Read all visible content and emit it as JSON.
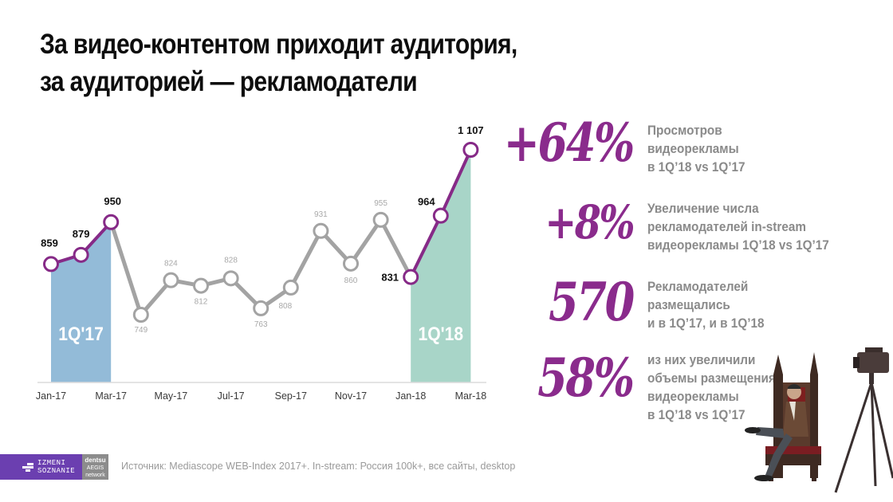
{
  "title": {
    "line1": "За видео-контентом приходит аудитория,",
    "line2": "за аудиторией — рекламодатели"
  },
  "chart_data": {
    "type": "line",
    "title": "",
    "xlabel": "",
    "ylabel": "",
    "x": [
      "Jan-17",
      "Feb-17",
      "Mar-17",
      "Apr-17",
      "May-17",
      "Jun-17",
      "Jul-17",
      "Aug-17",
      "Sep-17",
      "Oct-17",
      "Nov-17",
      "Dec-17",
      "Jan-18",
      "Feb-18",
      "Mar-18"
    ],
    "x_tick_labels": [
      "Jan-17",
      "Mar-17",
      "May-17",
      "Jul-17",
      "Sep-17",
      "Nov-17",
      "Jan-18",
      "Mar-18"
    ],
    "values": [
      859,
      879,
      950,
      749,
      824,
      812,
      828,
      763,
      808,
      931,
      860,
      955,
      831,
      964,
      1107
    ],
    "data_labels": [
      "859",
      "879",
      "950",
      "749",
      "824",
      "812",
      "828",
      "763",
      "808",
      "931",
      "860",
      "955",
      "831",
      "964",
      "1 107"
    ],
    "ylim": [
      600,
      1130
    ],
    "grid": false,
    "legend": "none",
    "highlights": [
      {
        "label": "1Q'17",
        "start": "Jan-17",
        "end": "Mar-17",
        "color": "#93bbd8"
      },
      {
        "label": "1Q'18",
        "start": "Jan-18",
        "end": "Mar-18",
        "color": "#a8d5c8"
      }
    ],
    "colors": {
      "highlight_line": "#862a87",
      "base_line": "#a3a3a3",
      "highlight_label": "#111111",
      "base_label": "#a8a8a8"
    }
  },
  "stats": [
    {
      "value": "+64%",
      "desc": [
        "Просмотров",
        "видеорекламы",
        "в 1Q’18 vs 1Q’17"
      ]
    },
    {
      "value": "+8%",
      "desc": [
        "Увеличение числа",
        "рекламодателей in-stream",
        "видеорекламы 1Q’18 vs 1Q’17"
      ]
    },
    {
      "value": "570",
      "desc": [
        "Рекламодателей",
        "размещались",
        "и в 1Q’17, и в 1Q’18"
      ]
    },
    {
      "value": "58%",
      "desc": [
        "из них увеличили",
        "объемы размещения",
        "видеорекламы",
        "в 1Q’18 vs 1Q’17"
      ]
    }
  ],
  "footer": {
    "logo_izmeni_line1": "IZMENI",
    "logo_izmeni_line2": "SOZNANIE",
    "logo_dentsu_line1": "dentsu",
    "logo_dentsu_line2": "AEGIS",
    "logo_dentsu_line3": "network",
    "source": "Источник: Mediascope WEB-Index 2017+. In-stream: Россия 100k+, все сайты, desktop"
  },
  "colors": {
    "accent": "#8a2b8c",
    "stat_text": "#8a8a8a",
    "logo_purple": "#6b3fb0",
    "logo_gray": "#8c8c8c"
  }
}
